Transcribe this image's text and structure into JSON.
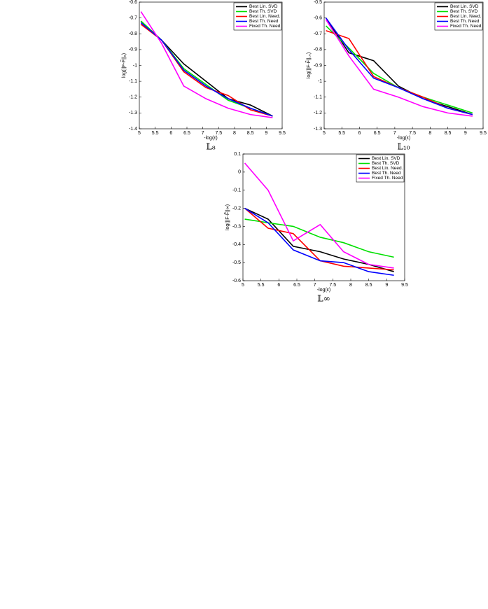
{
  "chart_data": [
    {
      "type": "line",
      "title": "𝕃₈",
      "x_label": "-log(ε)",
      "y_label": "log(||F-F̃||₈)",
      "x": [
        5.05,
        5.7,
        6.4,
        7.1,
        7.8,
        8.5,
        9.2
      ],
      "xlim": [
        5,
        9.5
      ],
      "xticks": [
        5,
        5.5,
        6,
        6.5,
        7,
        7.5,
        8,
        8.5,
        9,
        9.5
      ],
      "ylim": [
        -1.4,
        -0.6
      ],
      "yticks": [
        -1.4,
        -1.3,
        -1.2,
        -1.1,
        -1,
        -0.9,
        -0.8,
        -0.7,
        -0.6
      ],
      "legend": "upper right",
      "series": [
        {
          "name": "Best Lin. SVD",
          "color": "#000000",
          "values": [
            -0.72,
            -0.84,
            -0.99,
            -1.1,
            -1.21,
            -1.25,
            -1.32
          ]
        },
        {
          "name": "Best Th. SVD",
          "color": "#00e000",
          "values": [
            -0.72,
            -0.84,
            -1.02,
            -1.12,
            -1.22,
            -1.27,
            -1.32
          ]
        },
        {
          "name": "Best Lin. Need.",
          "color": "#ff0000",
          "values": [
            -0.74,
            -0.84,
            -1.04,
            -1.14,
            -1.19,
            -1.28,
            -1.32
          ]
        },
        {
          "name": "Best Th. Need",
          "color": "#0000ff",
          "values": [
            -0.73,
            -0.84,
            -1.03,
            -1.13,
            -1.21,
            -1.27,
            -1.32
          ]
        },
        {
          "name": "Fixed Th. Need",
          "color": "#ff00ff",
          "values": [
            -0.66,
            -0.86,
            -1.13,
            -1.21,
            -1.27,
            -1.31,
            -1.33
          ]
        }
      ]
    },
    {
      "type": "line",
      "title": "𝕃₁₀",
      "x_label": "-log(ε)",
      "y_label": "log(||F-F̃||₁₀)",
      "x": [
        5.05,
        5.7,
        6.4,
        7.1,
        7.8,
        8.5,
        9.2
      ],
      "xlim": [
        5,
        9.5
      ],
      "xticks": [
        5,
        5.5,
        6,
        6.5,
        7,
        7.5,
        8,
        8.5,
        9,
        9.5
      ],
      "ylim": [
        -1.3,
        -0.5
      ],
      "yticks": [
        -1.3,
        -1.2,
        -1.1,
        -1,
        -0.9,
        -0.8,
        -0.7,
        -0.6,
        -0.5
      ],
      "legend": "upper right",
      "series": [
        {
          "name": "Best Lin. SVD",
          "color": "#000000",
          "values": [
            -0.6,
            -0.82,
            -0.87,
            -1.03,
            -1.11,
            -1.16,
            -1.21
          ]
        },
        {
          "name": "Best Th. SVD",
          "color": "#00e000",
          "values": [
            -0.65,
            -0.79,
            -0.95,
            -1.04,
            -1.1,
            -1.15,
            -1.2
          ]
        },
        {
          "name": "Best Lin. Need.",
          "color": "#ff0000",
          "values": [
            -0.68,
            -0.73,
            -0.97,
            -1.04,
            -1.1,
            -1.17,
            -1.21
          ]
        },
        {
          "name": "Best Th. Need",
          "color": "#0000ff",
          "values": [
            -0.6,
            -0.8,
            -0.98,
            -1.04,
            -1.11,
            -1.17,
            -1.21
          ]
        },
        {
          "name": "Fixed Th. Need",
          "color": "#ff00ff",
          "values": [
            -0.61,
            -0.84,
            -1.05,
            -1.1,
            -1.16,
            -1.2,
            -1.22
          ]
        }
      ]
    },
    {
      "type": "line",
      "title": "𝕃∞",
      "x_label": "-log(ε)",
      "y_label": "log(||F-F̃||∞)",
      "x": [
        5.05,
        5.7,
        6.4,
        7.15,
        7.8,
        8.5,
        9.2
      ],
      "xlim": [
        5,
        9.5
      ],
      "xticks": [
        5,
        5.5,
        6,
        6.5,
        7,
        7.5,
        8,
        8.5,
        9,
        9.5
      ],
      "ylim": [
        -0.6,
        0.1
      ],
      "yticks": [
        -0.6,
        -0.5,
        -0.4,
        -0.3,
        -0.2,
        -0.1,
        0,
        0.1
      ],
      "legend": "upper right",
      "series": [
        {
          "name": "Best Lin. SVD",
          "color": "#000000",
          "values": [
            -0.2,
            -0.26,
            -0.41,
            -0.44,
            -0.48,
            -0.51,
            -0.55
          ]
        },
        {
          "name": "Best Th. SVD",
          "color": "#00e000",
          "values": [
            -0.26,
            -0.28,
            -0.3,
            -0.36,
            -0.39,
            -0.44,
            -0.47
          ]
        },
        {
          "name": "Best Lin. Need.",
          "color": "#ff0000",
          "values": [
            -0.2,
            -0.31,
            -0.34,
            -0.49,
            -0.52,
            -0.53,
            -0.54
          ]
        },
        {
          "name": "Best Th. Need",
          "color": "#0000ff",
          "values": [
            -0.2,
            -0.28,
            -0.43,
            -0.49,
            -0.5,
            -0.55,
            -0.57
          ]
        },
        {
          "name": "Fixed Th. Need",
          "color": "#ff00ff",
          "values": [
            0.05,
            -0.1,
            -0.38,
            -0.29,
            -0.44,
            -0.51,
            -0.53
          ]
        }
      ]
    }
  ]
}
